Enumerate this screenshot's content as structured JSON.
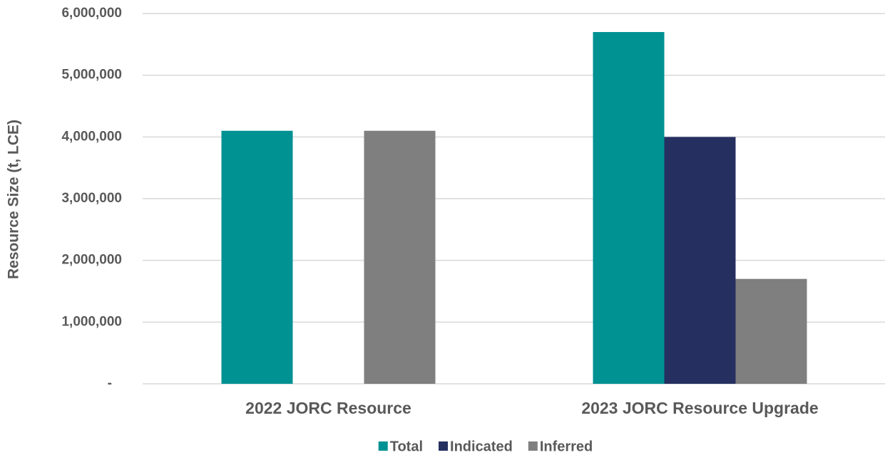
{
  "chart_data": {
    "type": "bar",
    "y_label": "Resource Size (t, LCE)",
    "categories": [
      "2022 JORC Resource",
      "2023 JORC Resource Upgrade"
    ],
    "series": [
      {
        "name": "Total",
        "color": "#009193",
        "values": [
          4100000,
          5700000
        ]
      },
      {
        "name": "Indicated",
        "color": "#252f60",
        "values": [
          null,
          4000000
        ]
      },
      {
        "name": "Inferred",
        "color": "#7f7f7f",
        "values": [
          4100000,
          1700000
        ]
      }
    ],
    "ylim": [
      0,
      6000000
    ],
    "yticks": [
      {
        "value": 0,
        "label": "-"
      },
      {
        "value": 1000000,
        "label": "1,000,000"
      },
      {
        "value": 2000000,
        "label": "2,000,000"
      },
      {
        "value": 3000000,
        "label": "3,000,000"
      },
      {
        "value": 4000000,
        "label": "4,000,000"
      },
      {
        "value": 5000000,
        "label": "5,000,000"
      },
      {
        "value": 6000000,
        "label": "6,000,000"
      }
    ],
    "grid": true,
    "legend": "bottom"
  }
}
